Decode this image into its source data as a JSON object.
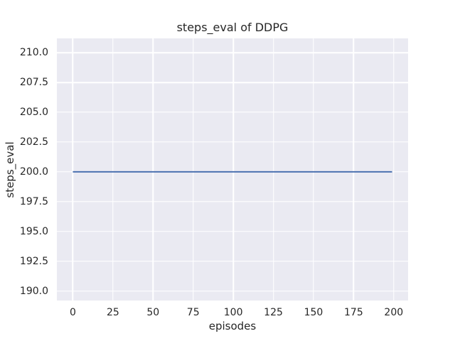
{
  "style": {
    "figure_bg": "#ffffff",
    "plot_bg": "#eaeaf2",
    "grid_color": "#ffffff",
    "text_color": "#262626",
    "line_color": "#4c72b0"
  },
  "chart_data": {
    "type": "line",
    "title": "steps_eval of DDPG",
    "xlabel": "episodes",
    "ylabel": "steps_eval",
    "grid": true,
    "legend": false,
    "xlim": [
      -9.95,
      208.95
    ],
    "ylim": [
      189.2,
      211.2
    ],
    "xticks": [
      0,
      25,
      50,
      75,
      100,
      125,
      150,
      175,
      200
    ],
    "xtick_labels": [
      "0",
      "25",
      "50",
      "75",
      "100",
      "125",
      "150",
      "175",
      "200"
    ],
    "yticks": [
      190.0,
      192.5,
      195.0,
      197.5,
      200.0,
      202.5,
      205.0,
      207.5,
      210.0
    ],
    "ytick_labels": [
      "190.0",
      "192.5",
      "195.0",
      "197.5",
      "200.0",
      "202.5",
      "205.0",
      "207.5",
      "210.0"
    ],
    "series": [
      {
        "name": "steps_eval",
        "color": "#4c72b0",
        "x": [
          0,
          199
        ],
        "y": [
          200.0,
          200.0
        ]
      }
    ]
  }
}
